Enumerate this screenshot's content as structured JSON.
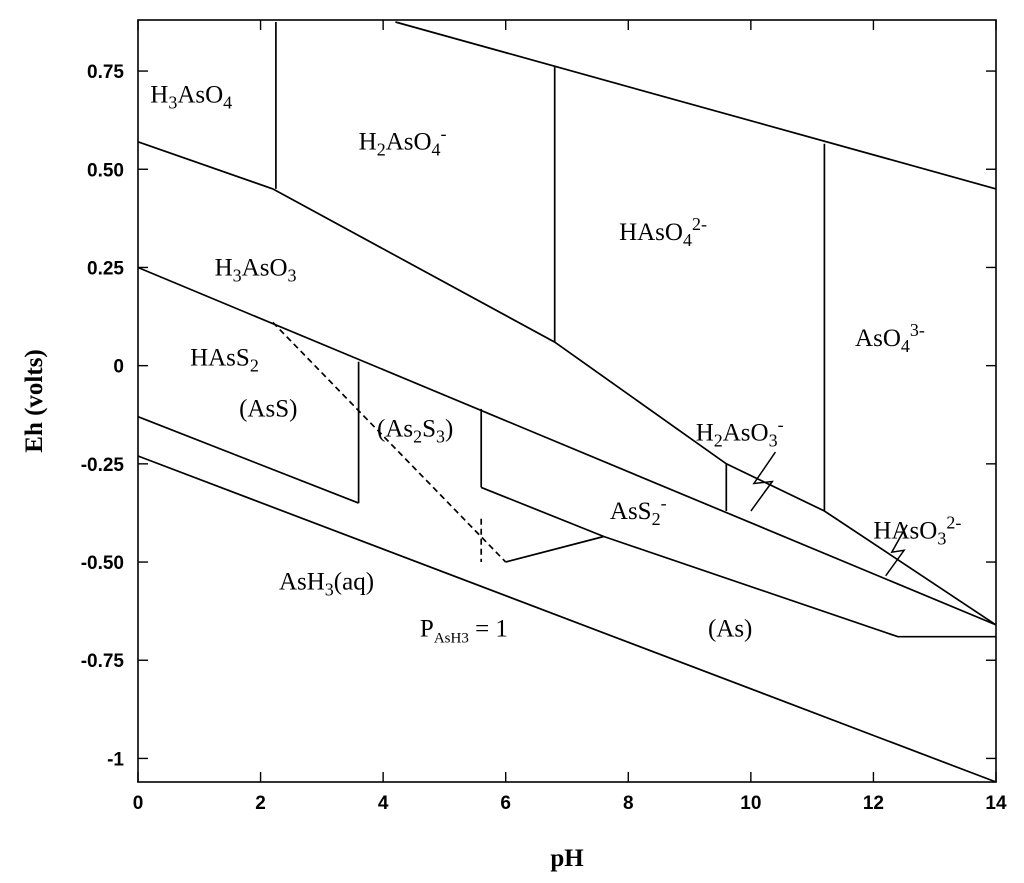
{
  "chart_data": {
    "type": "line",
    "title": "",
    "xlabel": "pH",
    "ylabel": "Eh (volts)",
    "xlim": [
      0,
      14
    ],
    "ylim": [
      -1.06,
      0.88
    ],
    "grid": false,
    "x_ticks": [
      {
        "v": 0,
        "label": "0"
      },
      {
        "v": 2,
        "label": "2"
      },
      {
        "v": 4,
        "label": "4"
      },
      {
        "v": 6,
        "label": "6"
      },
      {
        "v": 8,
        "label": "8"
      },
      {
        "v": 10,
        "label": "10"
      },
      {
        "v": 12,
        "label": "12"
      },
      {
        "v": 14,
        "label": "14"
      }
    ],
    "y_ticks": [
      {
        "v": 0.75,
        "label": "0.75"
      },
      {
        "v": 0.5,
        "label": "0.50"
      },
      {
        "v": 0.25,
        "label": "0.25"
      },
      {
        "v": 0,
        "label": "0"
      },
      {
        "v": -0.25,
        "label": "-0.25"
      },
      {
        "v": -0.5,
        "label": "-0.50"
      },
      {
        "v": -0.75,
        "label": "-0.75"
      },
      {
        "v": -1,
        "label": "-1"
      }
    ],
    "boundaries": [
      {
        "style": "solid",
        "points": [
          [
            4.2,
            0.875
          ],
          [
            14,
            0.45
          ]
        ]
      },
      {
        "style": "solid",
        "points": [
          [
            0,
            0.57
          ],
          [
            2.2,
            0.45
          ],
          [
            6.8,
            0.06
          ],
          [
            9.6,
            -0.25
          ],
          [
            11.2,
            -0.37
          ],
          [
            14,
            -0.66
          ]
        ]
      },
      {
        "style": "solid",
        "points": [
          [
            2.25,
            0.875
          ],
          [
            2.25,
            0.45
          ]
        ]
      },
      {
        "style": "solid",
        "points": [
          [
            6.8,
            0.76
          ],
          [
            6.8,
            0.06
          ]
        ]
      },
      {
        "style": "solid",
        "points": [
          [
            11.2,
            0.565
          ],
          [
            11.2,
            -0.37
          ]
        ]
      },
      {
        "style": "solid",
        "points": [
          [
            0,
            0.25
          ],
          [
            14,
            -0.66
          ]
        ]
      },
      {
        "style": "solid",
        "points": [
          [
            3.6,
            0.01
          ],
          [
            3.6,
            -0.35
          ]
        ]
      },
      {
        "style": "solid",
        "points": [
          [
            5.6,
            -0.11
          ],
          [
            5.6,
            -0.31
          ]
        ]
      },
      {
        "style": "solid",
        "points": [
          [
            9.6,
            -0.25
          ],
          [
            9.6,
            -0.37
          ]
        ]
      },
      {
        "style": "dashed",
        "points": [
          [
            2.2,
            0.11
          ],
          [
            6.0,
            -0.5
          ]
        ]
      },
      {
        "style": "dashed",
        "points": [
          [
            5.6,
            -0.39
          ],
          [
            5.6,
            -0.5
          ]
        ]
      },
      {
        "style": "solid",
        "points": [
          [
            0,
            -0.13
          ],
          [
            3.6,
            -0.35
          ]
        ]
      },
      {
        "style": "solid",
        "points": [
          [
            5.6,
            -0.31
          ],
          [
            7.6,
            -0.435
          ]
        ]
      },
      {
        "style": "solid",
        "points": [
          [
            6.0,
            -0.5
          ],
          [
            7.6,
            -0.435
          ]
        ]
      },
      {
        "style": "solid",
        "points": [
          [
            7.6,
            -0.435
          ],
          [
            12.4,
            -0.69
          ],
          [
            14,
            -0.69
          ]
        ]
      },
      {
        "style": "solid",
        "points": [
          [
            0,
            -0.23
          ],
          [
            14,
            -1.06
          ]
        ]
      }
    ],
    "break_marks": [
      {
        "points": [
          [
            10.0,
            -0.37
          ],
          [
            10.35,
            -0.295
          ],
          [
            10.05,
            -0.3
          ],
          [
            10.4,
            -0.22
          ]
        ]
      },
      {
        "points": [
          [
            12.2,
            -0.535
          ],
          [
            12.5,
            -0.47
          ],
          [
            12.3,
            -0.475
          ],
          [
            12.55,
            -0.405
          ]
        ]
      }
    ],
    "annotations": [
      {
        "parts": [
          {
            "t": "H"
          },
          {
            "t": "3",
            "pos": "sub"
          },
          {
            "t": "AsO"
          },
          {
            "t": "4",
            "pos": "sub"
          }
        ],
        "x": 0.2,
        "y": 0.67
      },
      {
        "parts": [
          {
            "t": "H"
          },
          {
            "t": "2",
            "pos": "sub"
          },
          {
            "t": "AsO"
          },
          {
            "t": "4",
            "pos": "sub"
          },
          {
            "t": "-",
            "pos": "sup"
          }
        ],
        "x": 3.6,
        "y": 0.55
      },
      {
        "parts": [
          {
            "t": "HAsO"
          },
          {
            "t": "4",
            "pos": "sub"
          },
          {
            "t": "2-",
            "pos": "sup"
          }
        ],
        "x": 7.85,
        "y": 0.32
      },
      {
        "parts": [
          {
            "t": "AsO"
          },
          {
            "t": "4",
            "pos": "sub"
          },
          {
            "t": "3-",
            "pos": "sup"
          }
        ],
        "x": 11.7,
        "y": 0.05
      },
      {
        "parts": [
          {
            "t": "H"
          },
          {
            "t": "3",
            "pos": "sub"
          },
          {
            "t": "AsO"
          },
          {
            "t": "3",
            "pos": "sub"
          }
        ],
        "x": 1.25,
        "y": 0.23
      },
      {
        "parts": [
          {
            "t": "HAsS"
          },
          {
            "t": "2",
            "pos": "sub"
          }
        ],
        "x": 0.85,
        "y": 0.0
      },
      {
        "parts": [
          {
            "t": "(AsS)"
          }
        ],
        "x": 1.65,
        "y": -0.13
      },
      {
        "parts": [
          {
            "t": "(As"
          },
          {
            "t": "2",
            "pos": "sub"
          },
          {
            "t": "S"
          },
          {
            "t": "3",
            "pos": "sub"
          },
          {
            "t": ")"
          }
        ],
        "x": 3.9,
        "y": -0.18
      },
      {
        "parts": [
          {
            "t": "H"
          },
          {
            "t": "2",
            "pos": "sub"
          },
          {
            "t": "AsO"
          },
          {
            "t": "3",
            "pos": "sub"
          },
          {
            "t": "-",
            "pos": "sup"
          }
        ],
        "x": 9.1,
        "y": -0.19
      },
      {
        "parts": [
          {
            "t": "AsS"
          },
          {
            "t": "2",
            "pos": "sub"
          },
          {
            "t": "-",
            "pos": "sup"
          }
        ],
        "x": 7.7,
        "y": -0.39
      },
      {
        "parts": [
          {
            "t": "HAsO"
          },
          {
            "t": "3",
            "pos": "sub"
          },
          {
            "t": "2-",
            "pos": "sup"
          }
        ],
        "x": 12.0,
        "y": -0.44
      },
      {
        "parts": [
          {
            "t": "AsH"
          },
          {
            "t": "3",
            "pos": "sub"
          },
          {
            "t": "(aq)"
          }
        ],
        "x": 2.3,
        "y": -0.57
      },
      {
        "parts": [
          {
            "t": "P"
          },
          {
            "t": "AsH3",
            "pos": "sub"
          },
          {
            "t": " = 1"
          }
        ],
        "x": 4.6,
        "y": -0.69
      },
      {
        "parts": [
          {
            "t": "(As)"
          }
        ],
        "x": 9.3,
        "y": -0.69
      }
    ]
  }
}
